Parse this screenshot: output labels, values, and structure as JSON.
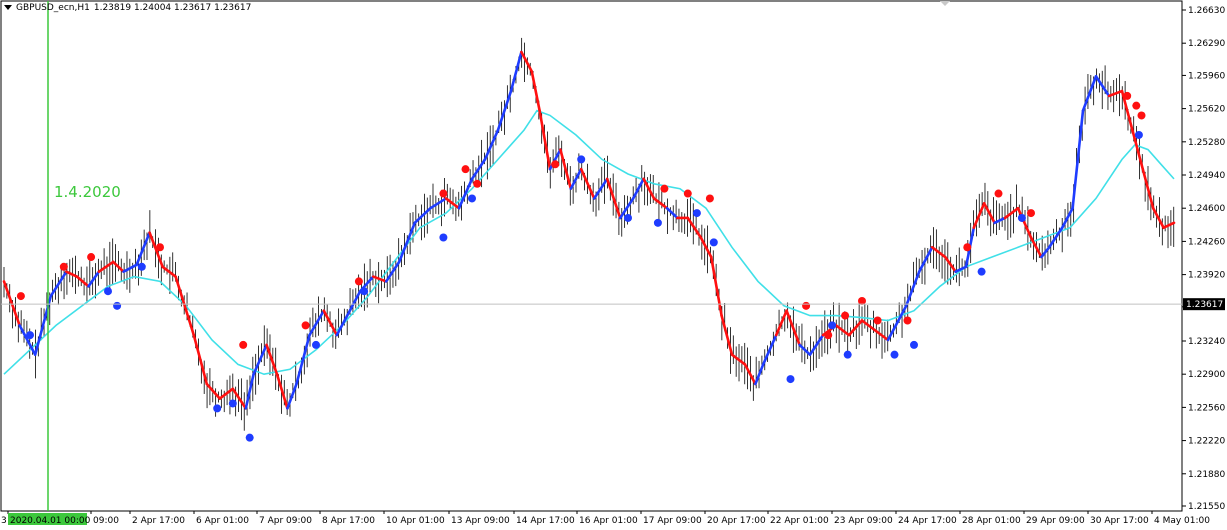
{
  "header": {
    "symbol": "GBPUSD_ecn,H1",
    "ohlc": "1.23819 1.24004 1.23617 1.23617"
  },
  "chart_data": {
    "type": "line",
    "title": "GBPUSD_ecn,H1",
    "ylim": [
      1.2155,
      1.2663
    ],
    "grid": false,
    "yticks": [
      "1.26630",
      "1.26290",
      "1.25960",
      "1.25620",
      "1.25280",
      "1.24940",
      "1.24600",
      "1.24260",
      "1.23920",
      "1.23590",
      "1.23240",
      "1.22900",
      "1.22560",
      "1.22220",
      "1.21880",
      "1.21550"
    ],
    "xticks": [
      "2020.04.01 00:00",
      "09:00",
      "2 Apr 17:00",
      "6 Apr 01:00",
      "7 Apr 09:00",
      "8 Apr 17:00",
      "10 Apr 01:00",
      "13 Apr 09:00",
      "14 Apr 17:00",
      "16 Apr 01:00",
      "17 Apr 09:00",
      "20 Apr 17:00",
      "22 Apr 01:00",
      "23 Apr 09:00",
      "24 Apr 17:00",
      "28 Apr 01:00",
      "29 Apr 09:00",
      "30 Apr 17:00",
      "4 May 01:00"
    ],
    "left_cut_label": "3",
    "current_price": 1.23617,
    "current_price_label": "1.23617",
    "vline_label": "1.4.2020",
    "series": [
      {
        "role": "price-segments",
        "points": [
          [
            0,
            1.2385,
            "r"
          ],
          [
            1.2,
            1.234,
            "r"
          ],
          [
            2.4,
            1.231,
            "b"
          ],
          [
            3.6,
            1.237,
            "b"
          ],
          [
            4.8,
            1.2395,
            "b"
          ],
          [
            5.6,
            1.239,
            "r"
          ],
          [
            6.5,
            1.238,
            "r"
          ],
          [
            7.3,
            1.2395,
            "b"
          ],
          [
            8.4,
            1.2405,
            "r"
          ],
          [
            9.2,
            1.2395,
            "r"
          ],
          [
            10.2,
            1.2402,
            "b"
          ],
          [
            11.2,
            1.2435,
            "b"
          ],
          [
            12.2,
            1.24,
            "r"
          ],
          [
            13.2,
            1.239,
            "r"
          ],
          [
            14.6,
            1.233,
            "r"
          ],
          [
            15.6,
            1.228,
            "r"
          ],
          [
            16.6,
            1.2265,
            "r"
          ],
          [
            17.6,
            1.2275,
            "r"
          ],
          [
            18.6,
            1.2255,
            "r"
          ],
          [
            19.2,
            1.229,
            "b"
          ],
          [
            20.2,
            1.232,
            "b"
          ],
          [
            21.0,
            1.229,
            "r"
          ],
          [
            21.8,
            1.2255,
            "r"
          ],
          [
            22.5,
            1.228,
            "b"
          ],
          [
            23.5,
            1.233,
            "b"
          ],
          [
            24.6,
            1.2355,
            "b"
          ],
          [
            25.6,
            1.233,
            "r"
          ],
          [
            26.4,
            1.235,
            "b"
          ],
          [
            27.4,
            1.2375,
            "b"
          ],
          [
            28.4,
            1.239,
            "b"
          ],
          [
            29.4,
            1.2385,
            "r"
          ],
          [
            30.4,
            1.2405,
            "b"
          ],
          [
            31.6,
            1.2445,
            "b"
          ],
          [
            32.8,
            1.246,
            "b"
          ],
          [
            34.0,
            1.247,
            "b"
          ],
          [
            35.0,
            1.246,
            "r"
          ],
          [
            36.0,
            1.249,
            "b"
          ],
          [
            37.0,
            1.251,
            "b"
          ],
          [
            38.0,
            1.254,
            "b"
          ],
          [
            39.0,
            1.258,
            "b"
          ],
          [
            39.8,
            1.262,
            "b"
          ],
          [
            40.6,
            1.26,
            "r"
          ],
          [
            41.2,
            1.256,
            "r"
          ],
          [
            42.0,
            1.25,
            "r"
          ],
          [
            42.8,
            1.252,
            "b"
          ],
          [
            43.6,
            1.248,
            "r"
          ],
          [
            44.4,
            1.25,
            "b"
          ],
          [
            45.4,
            1.247,
            "r"
          ],
          [
            46.4,
            1.249,
            "b"
          ],
          [
            47.4,
            1.245,
            "r"
          ],
          [
            48.4,
            1.247,
            "b"
          ],
          [
            49.2,
            1.249,
            "b"
          ],
          [
            50.0,
            1.247,
            "r"
          ],
          [
            51.0,
            1.246,
            "r"
          ],
          [
            51.8,
            1.245,
            "b"
          ],
          [
            52.6,
            1.245,
            "r"
          ],
          [
            53.6,
            1.243,
            "r"
          ],
          [
            54.4,
            1.241,
            "r"
          ],
          [
            55.2,
            1.235,
            "r"
          ],
          [
            56.0,
            1.231,
            "r"
          ],
          [
            57.0,
            1.23,
            "r"
          ],
          [
            57.8,
            1.228,
            "r"
          ],
          [
            58.4,
            1.23,
            "b"
          ],
          [
            59.4,
            1.233,
            "b"
          ],
          [
            60.2,
            1.2355,
            "r"
          ],
          [
            61.2,
            1.232,
            "r"
          ],
          [
            62.0,
            1.231,
            "b"
          ],
          [
            63.0,
            1.233,
            "b"
          ],
          [
            64.0,
            1.234,
            "r"
          ],
          [
            65.0,
            1.233,
            "r"
          ],
          [
            66.0,
            1.2345,
            "r"
          ],
          [
            67.0,
            1.2335,
            "r"
          ],
          [
            68.0,
            1.2325,
            "r"
          ],
          [
            68.6,
            1.234,
            "b"
          ],
          [
            69.4,
            1.236,
            "b"
          ],
          [
            70.4,
            1.2395,
            "b"
          ],
          [
            71.4,
            1.242,
            "b"
          ],
          [
            72.4,
            1.241,
            "r"
          ],
          [
            73.2,
            1.2395,
            "r"
          ],
          [
            74.0,
            1.24,
            "b"
          ],
          [
            74.6,
            1.244,
            "b"
          ],
          [
            75.4,
            1.2465,
            "r"
          ],
          [
            76.2,
            1.2445,
            "r"
          ],
          [
            77.0,
            1.245,
            "b"
          ],
          [
            78.0,
            1.246,
            "r"
          ],
          [
            79.0,
            1.243,
            "r"
          ],
          [
            79.8,
            1.241,
            "r"
          ],
          [
            80.4,
            1.242,
            "b"
          ],
          [
            81.4,
            1.244,
            "b"
          ],
          [
            82.2,
            1.246,
            "b"
          ],
          [
            83.0,
            1.256,
            "b"
          ],
          [
            84.0,
            1.2595,
            "b"
          ],
          [
            85.0,
            1.2575,
            "b"
          ],
          [
            86.0,
            1.258,
            "r"
          ],
          [
            86.8,
            1.254,
            "r"
          ],
          [
            87.6,
            1.25,
            "r"
          ],
          [
            88.4,
            1.246,
            "r"
          ],
          [
            89.2,
            1.244,
            "r"
          ],
          [
            90.0,
            1.2445,
            "r"
          ]
        ]
      }
    ],
    "ma": [
      [
        0,
        1.229
      ],
      [
        4,
        1.234
      ],
      [
        8,
        1.238
      ],
      [
        10,
        1.239
      ],
      [
        12,
        1.2385
      ],
      [
        14,
        1.236
      ],
      [
        16,
        1.2325
      ],
      [
        18,
        1.23
      ],
      [
        20,
        1.229
      ],
      [
        22,
        1.2295
      ],
      [
        24,
        1.2315
      ],
      [
        26,
        1.234
      ],
      [
        28,
        1.237
      ],
      [
        30,
        1.2405
      ],
      [
        32,
        1.244
      ],
      [
        34,
        1.2455
      ],
      [
        36,
        1.248
      ],
      [
        38,
        1.251
      ],
      [
        40,
        1.254
      ],
      [
        41,
        1.256
      ],
      [
        42,
        1.2555
      ],
      [
        44,
        1.2535
      ],
      [
        46,
        1.251
      ],
      [
        48,
        1.2495
      ],
      [
        50,
        1.2485
      ],
      [
        52,
        1.248
      ],
      [
        54,
        1.246
      ],
      [
        56,
        1.242
      ],
      [
        58,
        1.2385
      ],
      [
        60,
        1.236
      ],
      [
        62,
        1.235
      ],
      [
        64,
        1.235
      ],
      [
        66,
        1.2348
      ],
      [
        68,
        1.2345
      ],
      [
        70,
        1.2355
      ],
      [
        72,
        1.238
      ],
      [
        74,
        1.24
      ],
      [
        76,
        1.241
      ],
      [
        78,
        1.242
      ],
      [
        80,
        1.243
      ],
      [
        82,
        1.244
      ],
      [
        84,
        1.247
      ],
      [
        86,
        1.251
      ],
      [
        87,
        1.2525
      ],
      [
        88,
        1.252
      ],
      [
        89,
        1.2505
      ],
      [
        90,
        1.249
      ]
    ],
    "signals": [
      [
        1.3,
        1.237,
        "r"
      ],
      [
        2.0,
        1.233,
        "b"
      ],
      [
        4.6,
        1.24,
        "r"
      ],
      [
        6.7,
        1.241,
        "r"
      ],
      [
        8.0,
        1.2375,
        "b"
      ],
      [
        8.7,
        1.236,
        "b"
      ],
      [
        10.6,
        1.24,
        "b"
      ],
      [
        12.0,
        1.242,
        "r"
      ],
      [
        16.4,
        1.2255,
        "b"
      ],
      [
        17.6,
        1.226,
        "b"
      ],
      [
        18.9,
        1.2225,
        "b"
      ],
      [
        18.4,
        1.232,
        "r"
      ],
      [
        24.0,
        1.232,
        "b"
      ],
      [
        23.2,
        1.234,
        "r"
      ],
      [
        27.7,
        1.2375,
        "b"
      ],
      [
        27.3,
        1.2385,
        "r"
      ],
      [
        33.8,
        1.243,
        "b"
      ],
      [
        33.8,
        1.2475,
        "r"
      ],
      [
        36.0,
        1.247,
        "b"
      ],
      [
        35.5,
        1.25,
        "r"
      ],
      [
        36.4,
        1.2485,
        "r"
      ],
      [
        42.4,
        1.2505,
        "r"
      ],
      [
        44.4,
        1.251,
        "b"
      ],
      [
        48.0,
        1.245,
        "b"
      ],
      [
        50.3,
        1.2445,
        "b"
      ],
      [
        50.8,
        1.248,
        "r"
      ],
      [
        52.6,
        1.2475,
        "r"
      ],
      [
        53.3,
        1.2455,
        "b"
      ],
      [
        54.3,
        1.247,
        "r"
      ],
      [
        54.6,
        1.2425,
        "b"
      ],
      [
        60.5,
        1.2285,
        "b"
      ],
      [
        61.7,
        1.236,
        "r"
      ],
      [
        63.4,
        1.233,
        "r"
      ],
      [
        63.7,
        1.234,
        "b"
      ],
      [
        64.9,
        1.231,
        "b"
      ],
      [
        64.7,
        1.235,
        "r"
      ],
      [
        66.0,
        1.2365,
        "r"
      ],
      [
        67.2,
        1.2345,
        "r"
      ],
      [
        68.5,
        1.231,
        "b"
      ],
      [
        69.5,
        1.2345,
        "r"
      ],
      [
        70.0,
        1.232,
        "b"
      ],
      [
        74.1,
        1.242,
        "r"
      ],
      [
        75.2,
        1.2395,
        "b"
      ],
      [
        76.5,
        1.2475,
        "r"
      ],
      [
        78.3,
        1.245,
        "b"
      ],
      [
        79.0,
        1.2455,
        "r"
      ],
      [
        86.4,
        1.2575,
        "r"
      ],
      [
        87.1,
        1.2565,
        "r"
      ],
      [
        87.5,
        1.2555,
        "r"
      ],
      [
        87.3,
        1.2535,
        "b"
      ]
    ]
  }
}
